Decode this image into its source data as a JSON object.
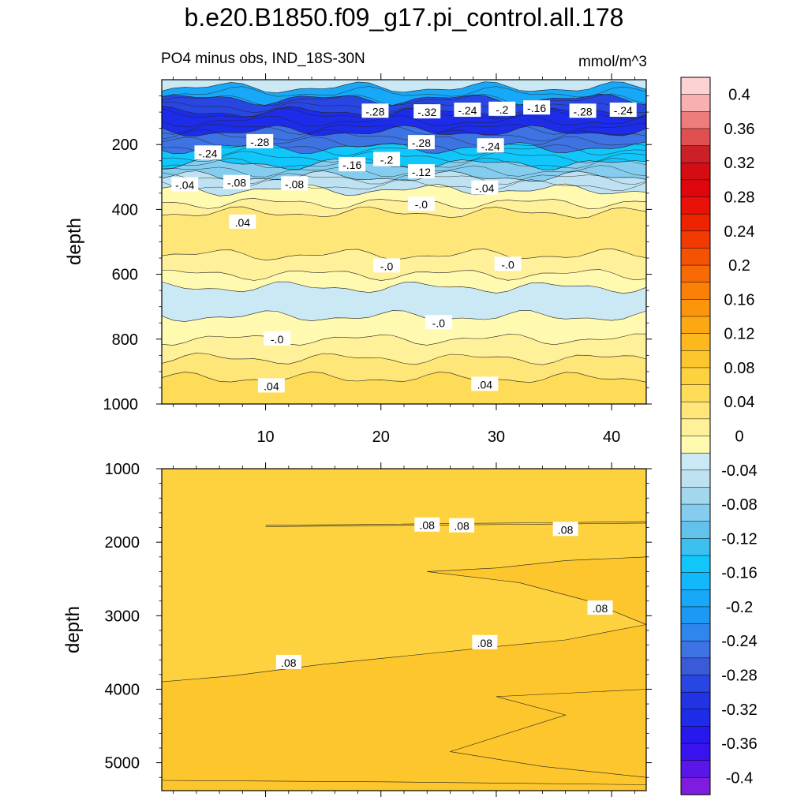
{
  "chart_data": [
    {
      "type": "heatmap",
      "panel": "upper",
      "title": "b.e20.B1850.f09_g17.pi_control.all.178",
      "subtitle_left": "PO4 minus obs, IND_18S-30N",
      "subtitle_right": "mmol/m^3",
      "xlabel": "",
      "ylabel": "depth",
      "xlim": [
        1,
        43
      ],
      "ylim": [
        1000,
        0
      ],
      "x_ticks": [
        10,
        20,
        30,
        40
      ],
      "y_ticks": [
        200,
        400,
        600,
        800,
        1000
      ],
      "bands": [
        {
          "from": 0,
          "to": 25,
          "value": -0.04
        },
        {
          "from": 25,
          "to": 60,
          "value": -0.2
        },
        {
          "from": 60,
          "to": 100,
          "value": -0.3
        },
        {
          "from": 100,
          "to": 160,
          "value": -0.34
        },
        {
          "from": 160,
          "to": 210,
          "value": -0.26
        },
        {
          "from": 210,
          "to": 260,
          "value": -0.16
        },
        {
          "from": 260,
          "to": 300,
          "value": -0.1
        },
        {
          "from": 300,
          "to": 340,
          "value": -0.05
        },
        {
          "from": 340,
          "to": 380,
          "value": -0.02
        },
        {
          "from": 380,
          "to": 410,
          "value": 0.01
        },
        {
          "from": 410,
          "to": 540,
          "value": 0.03
        },
        {
          "from": 540,
          "to": 600,
          "value": 0.01
        },
        {
          "from": 600,
          "to": 640,
          "value": -0.01
        },
        {
          "from": 640,
          "to": 730,
          "value": -0.03
        },
        {
          "from": 730,
          "to": 800,
          "value": -0.01
        },
        {
          "from": 800,
          "to": 860,
          "value": 0.01
        },
        {
          "from": 860,
          "to": 920,
          "value": 0.03
        },
        {
          "from": 920,
          "to": 1000,
          "value": 0.05
        }
      ],
      "contour_labels": [
        {
          "text": "-.28",
          "x": 19.5,
          "y": 98
        },
        {
          "text": "-.32",
          "x": 24,
          "y": 100
        },
        {
          "text": "-.24",
          "x": 27.5,
          "y": 95
        },
        {
          "text": "-.2",
          "x": 30.5,
          "y": 92
        },
        {
          "text": "-.16",
          "x": 33.5,
          "y": 88
        },
        {
          "text": "-.28",
          "x": 37.5,
          "y": 98
        },
        {
          "text": "-.24",
          "x": 41,
          "y": 95
        },
        {
          "text": "-.24",
          "x": 5,
          "y": 227
        },
        {
          "text": "-.28",
          "x": 9.5,
          "y": 192
        },
        {
          "text": "-.28",
          "x": 23.5,
          "y": 195
        },
        {
          "text": "-.24",
          "x": 29.5,
          "y": 205
        },
        {
          "text": "-.2",
          "x": 20.5,
          "y": 247
        },
        {
          "text": "-.16",
          "x": 17.5,
          "y": 263
        },
        {
          "text": "-.12",
          "x": 23.5,
          "y": 285
        },
        {
          "text": "-.04",
          "x": 3,
          "y": 325
        },
        {
          "text": "-.08",
          "x": 7.5,
          "y": 318
        },
        {
          "text": "-.08",
          "x": 12.5,
          "y": 322
        },
        {
          "text": "-.04",
          "x": 29,
          "y": 335
        },
        {
          "text": "-.0",
          "x": 23.5,
          "y": 385
        },
        {
          "text": ".04",
          "x": 8,
          "y": 440
        },
        {
          "text": "-.0",
          "x": 20.5,
          "y": 575
        },
        {
          "text": "-.0",
          "x": 31,
          "y": 570
        },
        {
          "text": "-.0",
          "x": 25,
          "y": 750
        },
        {
          "text": "-.0",
          "x": 11,
          "y": 800
        },
        {
          "text": ".04",
          "x": 10.5,
          "y": 945
        },
        {
          "text": ".04",
          "x": 29,
          "y": 940
        }
      ]
    },
    {
      "type": "heatmap",
      "panel": "lower",
      "xlabel": "",
      "ylabel": "depth",
      "xlim": [
        1,
        43
      ],
      "ylim": [
        5380,
        1000
      ],
      "y_ticks": [
        1000,
        2000,
        3000,
        4000,
        5000
      ],
      "regions": [
        {
          "name": "surface-strip",
          "value": 0.07
        },
        {
          "name": "upper-layer",
          "value": 0.075
        },
        {
          "name": "deep-wedge",
          "value": 0.085
        },
        {
          "name": "right-wedge",
          "value": 0.085
        },
        {
          "name": "lower-right-wedge",
          "value": 0.095
        }
      ],
      "contour_labels": [
        {
          "text": ".08",
          "x": 24,
          "y": 1770
        },
        {
          "text": ".08",
          "x": 27,
          "y": 1780
        },
        {
          "text": ".08",
          "x": 36,
          "y": 1830
        },
        {
          "text": ".08",
          "x": 39,
          "y": 2900
        },
        {
          "text": ".08",
          "x": 29,
          "y": 3370
        },
        {
          "text": ".08",
          "x": 12,
          "y": 3640
        }
      ]
    },
    {
      "type": "colorbar",
      "levels": [
        -0.42,
        -0.4,
        -0.38,
        -0.36,
        -0.34,
        -0.32,
        -0.3,
        -0.28,
        -0.26,
        -0.24,
        -0.22,
        -0.2,
        -0.18,
        -0.16,
        -0.14,
        -0.12,
        -0.1,
        -0.08,
        -0.06,
        -0.04,
        -0.02,
        0,
        0.02,
        0.04,
        0.06,
        0.08,
        0.1,
        0.12,
        0.14,
        0.16,
        0.18,
        0.2,
        0.22,
        0.24,
        0.26,
        0.28,
        0.3,
        0.32,
        0.34,
        0.36,
        0.38,
        0.4,
        0.42
      ],
      "colors": [
        "#7f1dde",
        "#5a16e8",
        "#3a12f0",
        "#2618ee",
        "#1c2ce8",
        "#2233e6",
        "#2846e2",
        "#3a5ad8",
        "#3d73e2",
        "#2f86ec",
        "#1c98f5",
        "#18a8f8",
        "#12b8fa",
        "#10c6fb",
        "#3cc0f2",
        "#62c2ec",
        "#84cdee",
        "#a3d7ee",
        "#bfe2f2",
        "#cbe8f5",
        "#fffab0",
        "#fff09a",
        "#ffe678",
        "#fedc58",
        "#fed23e",
        "#fdc62c",
        "#fdb81e",
        "#fca812",
        "#fb960c",
        "#fa8008",
        "#f86a06",
        "#f65204",
        "#f23a02",
        "#ee2400",
        "#ea1208",
        "#e0060e",
        "#d40c14",
        "#cc2028",
        "#e05050",
        "#ee7c7c",
        "#f8b0b0",
        "#fcd2d2"
      ],
      "tick_labels": [
        "0.4",
        "0.36",
        "0.32",
        "0.28",
        "0.24",
        "0.2",
        "0.16",
        "0.12",
        "0.08",
        "0.04",
        "0",
        "-0.04",
        "-0.08",
        "-0.12",
        "-0.16",
        "-0.2",
        "-0.24",
        "-0.28",
        "-0.32",
        "-0.36",
        "-0.4"
      ],
      "units": "mmol/m^3"
    }
  ]
}
